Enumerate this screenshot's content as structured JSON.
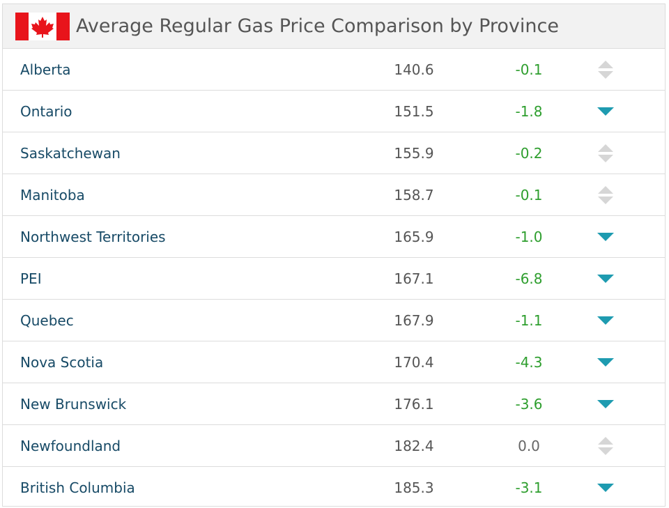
{
  "header": {
    "title": "Average Regular Gas Price Comparison by Province"
  },
  "table": {
    "rows": [
      {
        "province": "Alberta",
        "price": "140.6",
        "change": "-0.1",
        "trend": "neutral"
      },
      {
        "province": "Ontario",
        "price": "151.5",
        "change": "-1.8",
        "trend": "down"
      },
      {
        "province": "Saskatchewan",
        "price": "155.9",
        "change": "-0.2",
        "trend": "neutral"
      },
      {
        "province": "Manitoba",
        "price": "158.7",
        "change": "-0.1",
        "trend": "neutral"
      },
      {
        "province": "Northwest Territories",
        "price": "165.9",
        "change": "-1.0",
        "trend": "down"
      },
      {
        "province": "PEI",
        "price": "167.1",
        "change": "-6.8",
        "trend": "down"
      },
      {
        "province": "Quebec",
        "price": "167.9",
        "change": "-1.1",
        "trend": "down"
      },
      {
        "province": "Nova Scotia",
        "price": "170.4",
        "change": "-4.3",
        "trend": "down"
      },
      {
        "province": "New Brunswick",
        "price": "176.1",
        "change": "-3.6",
        "trend": "down"
      },
      {
        "province": "Newfoundland",
        "price": "182.4",
        "change": "0.0",
        "trend": "neutral"
      },
      {
        "province": "British Columbia",
        "price": "185.3",
        "change": "-3.1",
        "trend": "down"
      }
    ]
  }
}
